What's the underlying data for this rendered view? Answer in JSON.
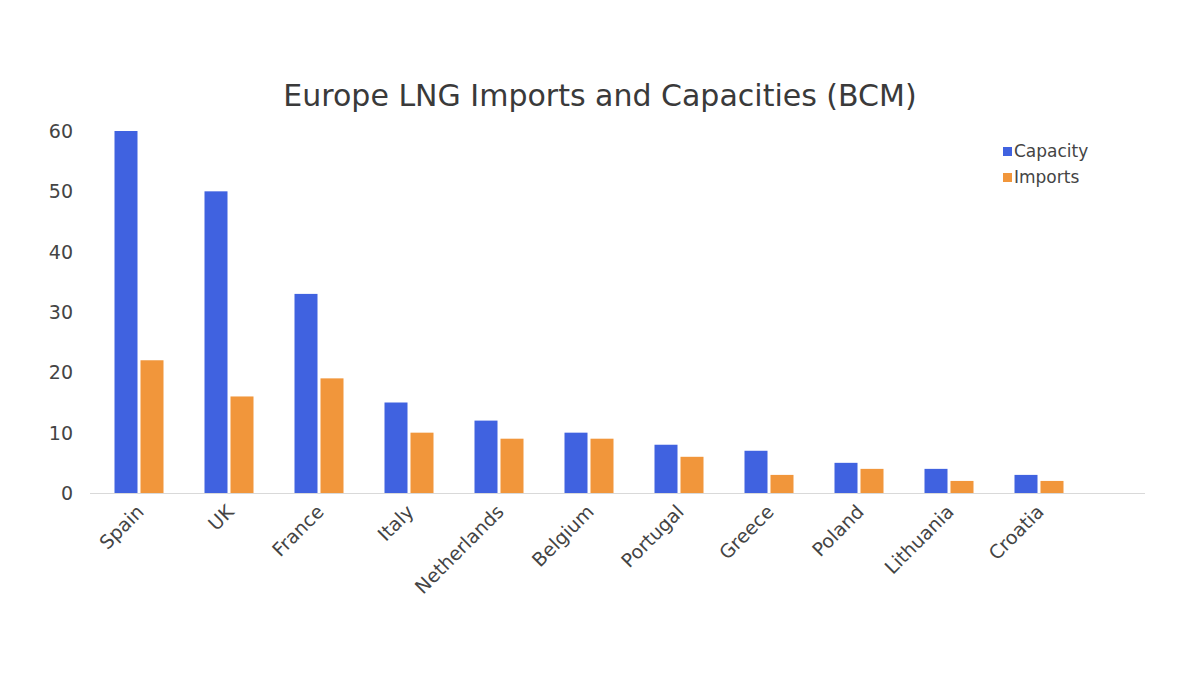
{
  "chart_data": {
    "type": "bar",
    "title": "Europe LNG Imports and Capacities (BCM)",
    "categories": [
      "Spain",
      "UK",
      "France",
      "Italy",
      "Netherlands",
      "Belgium",
      "Portugal",
      "Greece",
      "Poland",
      "Lithuania",
      "Croatia"
    ],
    "series": [
      {
        "name": "Capacity",
        "color": "#4062e0",
        "values": [
          60,
          50,
          33,
          15,
          12,
          10,
          8,
          7,
          5,
          4,
          3
        ]
      },
      {
        "name": "Imports",
        "color": "#f1963b",
        "values": [
          22,
          16,
          19,
          10,
          9,
          9,
          6,
          3,
          4,
          2,
          2
        ]
      }
    ],
    "ylim": [
      0,
      60
    ],
    "yticks": [
      0,
      10,
      20,
      30,
      40,
      50,
      60
    ],
    "grid": false,
    "legend": "top-right"
  }
}
